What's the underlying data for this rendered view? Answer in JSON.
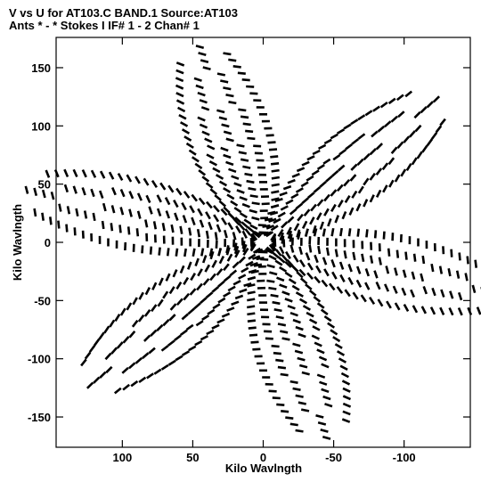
{
  "chart_data": {
    "type": "scatter",
    "title_line1": "V vs U for AT103.C BAND.1   Source:AT103",
    "title_line2": "Ants * - *     Stokes I   IF# 1 - 2   Chan# 1",
    "xlabel": "Kilo Wavlngth",
    "ylabel": "Kilo Wavlngth",
    "xlim": [
      147,
      -147
    ],
    "ylim": [
      -176,
      176
    ],
    "x_ticks": [
      100,
      50,
      0,
      -50,
      -100
    ],
    "y_ticks": [
      150,
      100,
      50,
      0,
      -50,
      -100,
      -150
    ],
    "x_tick_labels": [
      "100",
      "50",
      "0",
      "-50",
      "-100"
    ],
    "y_tick_labels": [
      "150",
      "100",
      "50",
      "0",
      "-50",
      "-100",
      "-150"
    ],
    "grid": false,
    "marker": "dash",
    "series_color": "#000000",
    "uv_coverage": {
      "pattern": "six-armed snowflake of elliptical baseline tracks, symmetric about the origin",
      "arm_angles_deg": [
        15,
        75,
        135,
        195,
        255,
        315
      ],
      "radii_kilo_wavelength": [
        8,
        14,
        20,
        26,
        32,
        38,
        44,
        50,
        56,
        62,
        68,
        74,
        80,
        86,
        92,
        98,
        104,
        110,
        116,
        122,
        128,
        134,
        140,
        146,
        152,
        158,
        164
      ],
      "arc_half_width_deg": [
        38,
        36,
        34,
        32,
        30,
        28,
        26,
        25,
        24,
        23,
        22,
        21,
        20,
        19,
        18,
        17,
        16,
        15,
        14,
        13,
        12,
        11,
        10,
        9,
        8,
        7,
        6
      ],
      "points_per_arc": [
        4,
        4,
        5,
        5,
        6,
        6,
        6,
        6,
        6,
        6,
        6,
        6,
        6,
        5,
        5,
        5,
        5,
        5,
        4,
        4,
        4,
        4,
        4,
        3,
        3,
        3,
        3
      ]
    }
  }
}
